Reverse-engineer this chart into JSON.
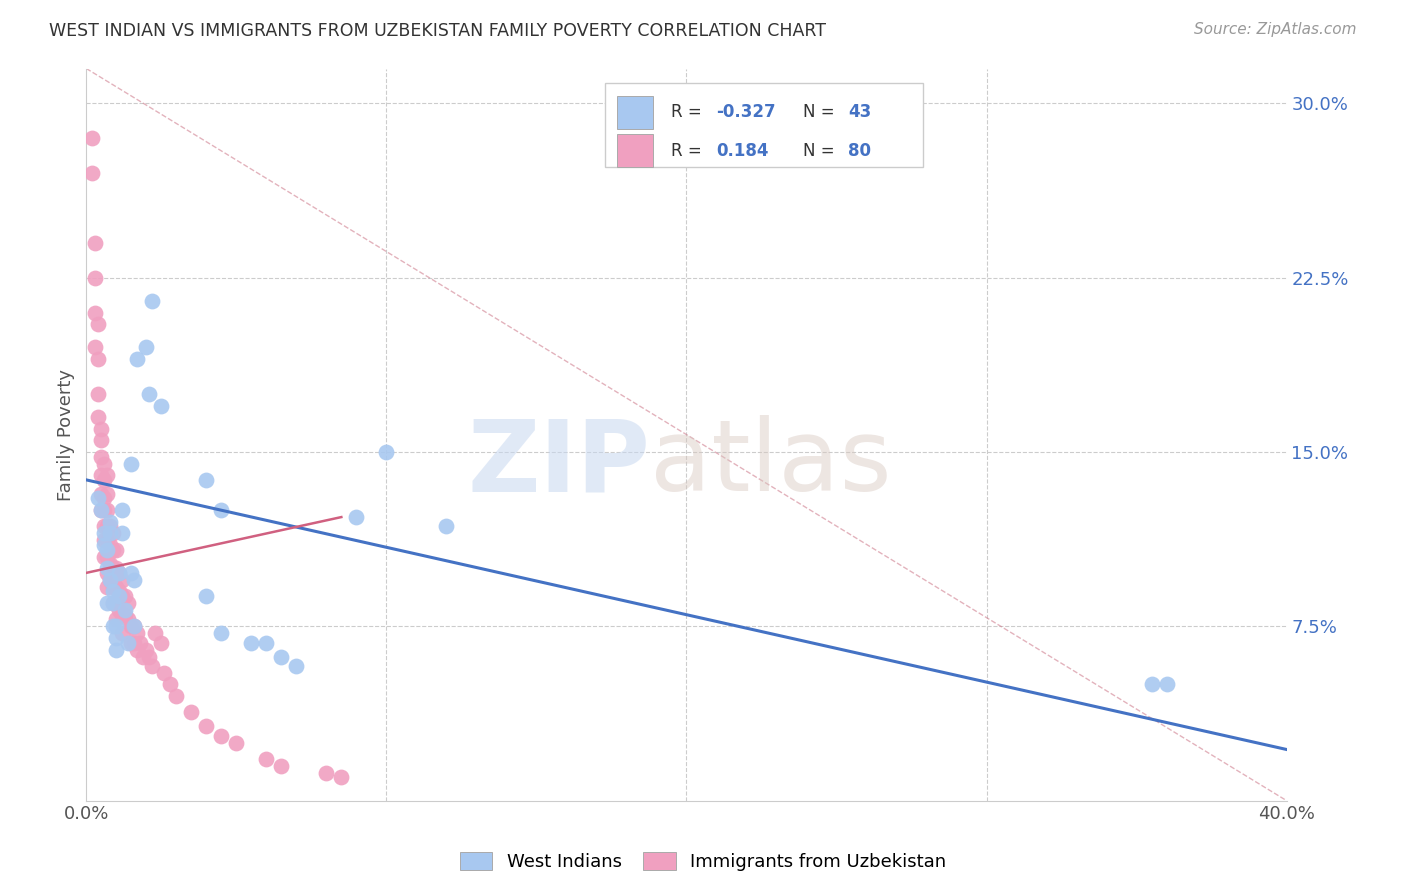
{
  "title": "WEST INDIAN VS IMMIGRANTS FROM UZBEKISTAN FAMILY POVERTY CORRELATION CHART",
  "source": "Source: ZipAtlas.com",
  "ylabel": "Family Poverty",
  "xlim": [
    0.0,
    0.4
  ],
  "ylim": [
    0.0,
    0.315
  ],
  "ytick_labels_right": [
    "30.0%",
    "22.5%",
    "15.0%",
    "7.5%"
  ],
  "ytick_vals_right": [
    0.3,
    0.225,
    0.15,
    0.075
  ],
  "color_blue": "#a8c8f0",
  "color_pink": "#f0a0c0",
  "color_blue_line": "#4472C4",
  "color_pink_line": "#d06080",
  "color_diag_line": "#d08090",
  "wi_blue_line_x": [
    0.0,
    0.4
  ],
  "wi_blue_line_y": [
    0.138,
    0.022
  ],
  "uz_pink_line_x": [
    0.0,
    0.085
  ],
  "uz_pink_line_y": [
    0.098,
    0.122
  ],
  "diag_line_x": [
    0.0,
    0.4
  ],
  "diag_line_y": [
    0.315,
    0.0
  ],
  "west_indians_x": [
    0.004,
    0.005,
    0.006,
    0.006,
    0.007,
    0.007,
    0.007,
    0.008,
    0.008,
    0.008,
    0.009,
    0.009,
    0.009,
    0.01,
    0.01,
    0.01,
    0.011,
    0.011,
    0.012,
    0.012,
    0.013,
    0.014,
    0.015,
    0.015,
    0.016,
    0.016,
    0.017,
    0.02,
    0.021,
    0.022,
    0.025,
    0.04,
    0.04,
    0.045,
    0.045,
    0.055,
    0.06,
    0.065,
    0.07,
    0.09,
    0.1,
    0.12,
    0.355,
    0.36
  ],
  "west_indians_y": [
    0.13,
    0.125,
    0.115,
    0.11,
    0.108,
    0.1,
    0.085,
    0.12,
    0.115,
    0.095,
    0.09,
    0.085,
    0.075,
    0.075,
    0.07,
    0.065,
    0.098,
    0.088,
    0.125,
    0.115,
    0.082,
    0.068,
    0.145,
    0.098,
    0.095,
    0.075,
    0.19,
    0.195,
    0.175,
    0.215,
    0.17,
    0.138,
    0.088,
    0.125,
    0.072,
    0.068,
    0.068,
    0.062,
    0.058,
    0.122,
    0.15,
    0.118,
    0.05,
    0.05
  ],
  "uzbekistan_x": [
    0.002,
    0.002,
    0.003,
    0.003,
    0.003,
    0.003,
    0.004,
    0.004,
    0.004,
    0.004,
    0.005,
    0.005,
    0.005,
    0.005,
    0.005,
    0.005,
    0.006,
    0.006,
    0.006,
    0.006,
    0.006,
    0.006,
    0.006,
    0.007,
    0.007,
    0.007,
    0.007,
    0.007,
    0.007,
    0.007,
    0.007,
    0.008,
    0.008,
    0.008,
    0.008,
    0.009,
    0.009,
    0.009,
    0.009,
    0.009,
    0.01,
    0.01,
    0.01,
    0.01,
    0.01,
    0.011,
    0.011,
    0.011,
    0.012,
    0.012,
    0.012,
    0.012,
    0.013,
    0.013,
    0.014,
    0.014,
    0.015,
    0.015,
    0.016,
    0.016,
    0.017,
    0.017,
    0.018,
    0.019,
    0.02,
    0.021,
    0.022,
    0.023,
    0.025,
    0.026,
    0.028,
    0.03,
    0.035,
    0.04,
    0.045,
    0.05,
    0.06,
    0.065,
    0.08,
    0.085
  ],
  "uzbekistan_y": [
    0.285,
    0.27,
    0.24,
    0.225,
    0.21,
    0.195,
    0.205,
    0.19,
    0.175,
    0.165,
    0.16,
    0.155,
    0.148,
    0.14,
    0.132,
    0.125,
    0.145,
    0.138,
    0.13,
    0.125,
    0.118,
    0.112,
    0.105,
    0.14,
    0.132,
    0.125,
    0.118,
    0.112,
    0.105,
    0.098,
    0.092,
    0.118,
    0.11,
    0.102,
    0.095,
    0.115,
    0.108,
    0.1,
    0.092,
    0.085,
    0.108,
    0.1,
    0.092,
    0.085,
    0.078,
    0.098,
    0.09,
    0.082,
    0.095,
    0.088,
    0.08,
    0.072,
    0.088,
    0.08,
    0.085,
    0.078,
    0.075,
    0.068,
    0.075,
    0.068,
    0.072,
    0.065,
    0.068,
    0.062,
    0.065,
    0.062,
    0.058,
    0.072,
    0.068,
    0.055,
    0.05,
    0.045,
    0.038,
    0.032,
    0.028,
    0.025,
    0.018,
    0.015,
    0.012,
    0.01
  ]
}
